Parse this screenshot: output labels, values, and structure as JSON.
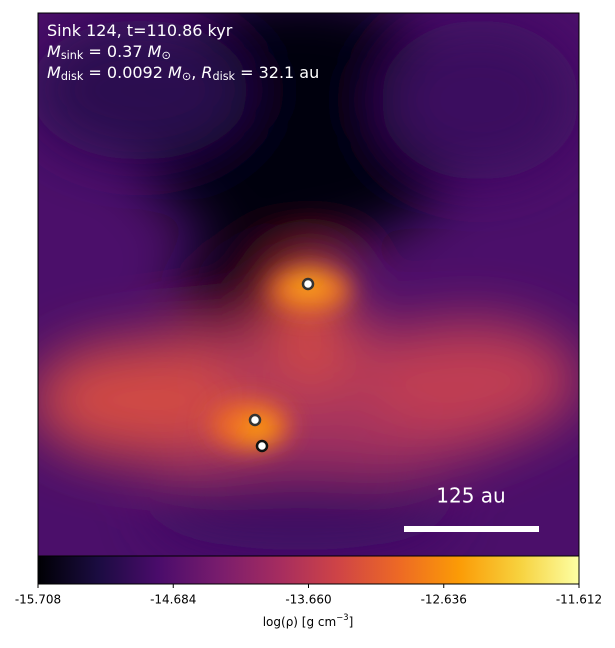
{
  "chart_data": {
    "type": "image",
    "annotations": [
      [
        {
          "text": "Sink 124, t=110.86 kyr"
        }
      ],
      [
        {
          "text": "M",
          "italic": true
        },
        {
          "text": "sink",
          "sub": true
        },
        {
          "text": " = 0.37 "
        },
        {
          "text": "M",
          "italic": true
        },
        {
          "text": "⊙",
          "sub": true
        }
      ],
      [
        {
          "text": "M",
          "italic": true
        },
        {
          "text": "disk",
          "sub": true
        },
        {
          "text": " = 0.0092 "
        },
        {
          "text": "M",
          "italic": true
        },
        {
          "text": "⊙",
          "sub": true
        },
        {
          "text": ", "
        },
        {
          "text": "R",
          "italic": true
        },
        {
          "text": "disk",
          "sub": true
        },
        {
          "text": " = 32.1 au"
        }
      ]
    ],
    "scale_bar_label": "125 au",
    "colorbar": {
      "clim": [
        -15.708,
        -11.612
      ],
      "ticks": [
        -15.708,
        -14.684,
        {
          "value": -13.66,
          "label": "-13.660"
        },
        -12.636,
        -11.612
      ],
      "label": [
        {
          "text": "log(ρ) [g cm"
        },
        {
          "text": "−3",
          "sup": true
        },
        {
          "text": "]"
        }
      ],
      "colormap": [
        "#000004",
        "#1b0c41",
        "#4a0c6b",
        "#781c6d",
        "#a52c60",
        "#cf4446",
        "#ed6925",
        "#fb9b06",
        "#f7d13d",
        "#fcffa4"
      ]
    }
  }
}
